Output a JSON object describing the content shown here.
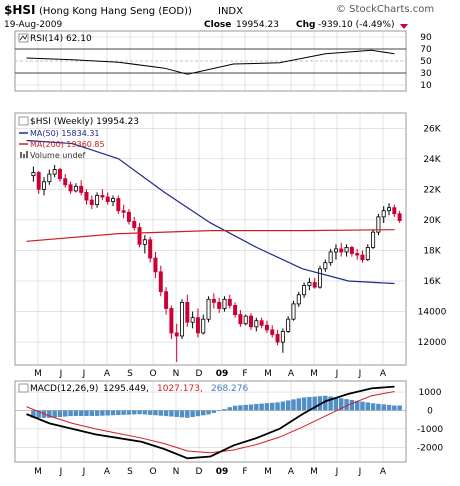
{
  "header": {
    "symbol": "$HSI",
    "name": "(Hong Kong Hang Seng (EOD))",
    "exchange": "INDX",
    "watermark": "© StockCharts.com",
    "date": "19-Aug-2009",
    "close_label": "Close",
    "close_value": "19954.23",
    "chg_label": "Chg",
    "chg_value": "-939.10 (-4.49%)",
    "chg_direction": "down"
  },
  "month_labels": [
    "M",
    "J",
    "J",
    "A",
    "S",
    "O",
    "N",
    "D",
    "09",
    "F",
    "M",
    "A",
    "M",
    "J",
    "J",
    "A"
  ],
  "colors": {
    "up_candle": "#000000",
    "down_candle": "#cc0033",
    "ma50": "#1f2a8c",
    "ma200": "#cc2020",
    "rsi_line": "#000000",
    "rsi_fill": "#8a5a5a",
    "macd_line": "#000000",
    "signal_line": "#d42020",
    "histogram": "#4f8fc6",
    "grid": "#c8c8c8"
  },
  "chart_data": [
    {
      "type": "line",
      "title": "RSI(14) 62.10",
      "legend": "RSI(14) 62.10",
      "yticks": [
        "90",
        "70",
        "50",
        "30",
        "10"
      ],
      "ylim": [
        0,
        100
      ],
      "x": [
        "2008-04",
        "2008-06",
        "2008-08",
        "2008-10",
        "2008-11",
        "2009-01",
        "2009-03",
        "2009-05",
        "2009-07",
        "2009-08"
      ],
      "series": [
        {
          "name": "RSI(14)",
          "values": [
            55,
            52,
            48,
            38,
            28,
            45,
            47,
            62,
            68,
            62
          ]
        }
      ]
    },
    {
      "type": "candlestick",
      "title": "$HSI (Weekly) 19954.23",
      "legends": [
        "$HSI (Weekly) 19954.23",
        "MA(50) 15834.31",
        "MA(200) 19360.85",
        "Volume undef"
      ],
      "yticks": [
        "26K",
        "24K",
        "22K",
        "20K",
        "18K",
        "16K",
        "14000",
        "12000"
      ],
      "ylim": [
        10500,
        27000
      ],
      "x_start": "2008-04-25",
      "ohlc": [
        [
          22900,
          23500,
          22500,
          23100
        ],
        [
          23100,
          23200,
          21700,
          22000
        ],
        [
          22000,
          22800,
          21600,
          22500
        ],
        [
          22500,
          23300,
          22300,
          23000
        ],
        [
          23000,
          23600,
          22800,
          23300
        ],
        [
          23300,
          23400,
          22500,
          22700
        ],
        [
          22700,
          23000,
          22100,
          22300
        ],
        [
          22300,
          22500,
          21700,
          21900
        ],
        [
          21900,
          22400,
          21800,
          22200
        ],
        [
          22200,
          22600,
          21600,
          21800
        ],
        [
          21800,
          22000,
          21000,
          21300
        ],
        [
          21300,
          21600,
          20700,
          21000
        ],
        [
          21000,
          21800,
          20800,
          21600
        ],
        [
          21600,
          22000,
          21300,
          21500
        ],
        [
          21500,
          21800,
          21000,
          21200
        ],
        [
          21200,
          21600,
          20900,
          21400
        ],
        [
          21400,
          21600,
          20400,
          20600
        ],
        [
          20600,
          21000,
          20100,
          20500
        ],
        [
          20500,
          20700,
          19700,
          19900
        ],
        [
          19900,
          20200,
          19300,
          19500
        ],
        [
          19500,
          19800,
          18200,
          18400
        ],
        [
          18400,
          19000,
          17800,
          18700
        ],
        [
          18700,
          18900,
          17200,
          17500
        ],
        [
          17500,
          17900,
          16200,
          16600
        ],
        [
          16600,
          17000,
          15000,
          15300
        ],
        [
          15300,
          15600,
          13800,
          14200
        ],
        [
          14200,
          14400,
          12200,
          12600
        ],
        [
          12600,
          13200,
          10700,
          12400
        ],
        [
          12400,
          14800,
          12200,
          14600
        ],
        [
          14600,
          15100,
          13000,
          13300
        ],
        [
          13300,
          14000,
          12900,
          13600
        ],
        [
          13600,
          14200,
          12300,
          12600
        ],
        [
          12600,
          13800,
          12500,
          13500
        ],
        [
          13500,
          15000,
          13300,
          14800
        ],
        [
          14800,
          15200,
          14200,
          14600
        ],
        [
          14600,
          14900,
          13900,
          14200
        ],
        [
          14200,
          15000,
          14000,
          14800
        ],
        [
          14800,
          15100,
          14200,
          14400
        ],
        [
          14400,
          14600,
          13600,
          13800
        ],
        [
          13800,
          14100,
          13000,
          13200
        ],
        [
          13200,
          13800,
          13100,
          13700
        ],
        [
          13700,
          13900,
          12800,
          13000
        ],
        [
          13000,
          13600,
          12700,
          13400
        ],
        [
          13400,
          13600,
          12900,
          13100
        ],
        [
          13100,
          13400,
          12600,
          12800
        ],
        [
          12800,
          13100,
          12300,
          12500
        ],
        [
          12500,
          12800,
          11800,
          12000
        ],
        [
          12000,
          12900,
          11300,
          12700
        ],
        [
          12700,
          13700,
          12600,
          13500
        ],
        [
          13500,
          14700,
          13400,
          14500
        ],
        [
          14500,
          15300,
          14300,
          15100
        ],
        [
          15100,
          15900,
          14900,
          15700
        ],
        [
          15700,
          16200,
          15400,
          15900
        ],
        [
          15900,
          16200,
          15500,
          15600
        ],
        [
          15600,
          17000,
          15500,
          16800
        ],
        [
          16800,
          17400,
          16600,
          17200
        ],
        [
          17200,
          18100,
          17000,
          17900
        ],
        [
          17900,
          18400,
          17400,
          18100
        ],
        [
          18100,
          18500,
          17600,
          17900
        ],
        [
          17900,
          18400,
          17600,
          18200
        ],
        [
          18200,
          18300,
          17600,
          17800
        ],
        [
          17800,
          18100,
          17400,
          17700
        ],
        [
          17700,
          18000,
          17200,
          17400
        ],
        [
          17400,
          18400,
          17300,
          18200
        ],
        [
          18200,
          19400,
          18100,
          19200
        ],
        [
          19200,
          20400,
          19000,
          20200
        ],
        [
          20200,
          20900,
          19800,
          20600
        ],
        [
          20600,
          21100,
          20300,
          20800
        ],
        [
          20800,
          21000,
          20200,
          20400
        ],
        [
          20400,
          20600,
          19800,
          19954
        ]
      ],
      "series": [
        {
          "name": "MA(50)",
          "x": [
            "2008-04",
            "2008-06",
            "2008-08",
            "2008-10",
            "2008-12",
            "2009-02",
            "2009-04",
            "2009-06",
            "2009-08"
          ],
          "values": [
            25200,
            25000,
            24000,
            21800,
            19800,
            18200,
            16800,
            16000,
            15834
          ]
        },
        {
          "name": "MA(200)",
          "x": [
            "2008-04",
            "2008-08",
            "2008-12",
            "2009-04",
            "2009-08"
          ],
          "values": [
            18600,
            19100,
            19300,
            19300,
            19361
          ]
        }
      ]
    },
    {
      "type": "line",
      "title": "MACD(12,26,9) 1295.449, 1027.173, 268.276",
      "legend_parts": [
        "MACD(12,26,9)",
        "1295.449,",
        "1027.173,",
        "268.276"
      ],
      "yticks": [
        "1000",
        "0",
        "-1000",
        "-2000"
      ],
      "ylim": [
        -2800,
        1600
      ],
      "x": [
        "2008-04",
        "2008-05",
        "2008-06",
        "2008-07",
        "2008-08",
        "2008-09",
        "2008-10",
        "2008-11",
        "2008-12",
        "2009-01",
        "2009-02",
        "2009-03",
        "2009-04",
        "2009-05",
        "2009-06",
        "2009-07",
        "2009-08"
      ],
      "series": [
        {
          "name": "MACD",
          "values": [
            -200,
            -700,
            -1000,
            -1300,
            -1500,
            -1700,
            -2100,
            -2600,
            -2500,
            -1900,
            -1500,
            -1000,
            -200,
            500,
            900,
            1200,
            1295
          ]
        },
        {
          "name": "Signal",
          "values": [
            200,
            -300,
            -700,
            -1000,
            -1250,
            -1500,
            -1800,
            -2200,
            -2300,
            -2150,
            -1850,
            -1450,
            -900,
            -300,
            300,
            800,
            1027
          ]
        },
        {
          "name": "Histogram",
          "values": [
            -400,
            -400,
            -300,
            -300,
            -250,
            -200,
            -300,
            -400,
            -200,
            250,
            350,
            450,
            700,
            800,
            600,
            400,
            268
          ]
        }
      ]
    }
  ]
}
